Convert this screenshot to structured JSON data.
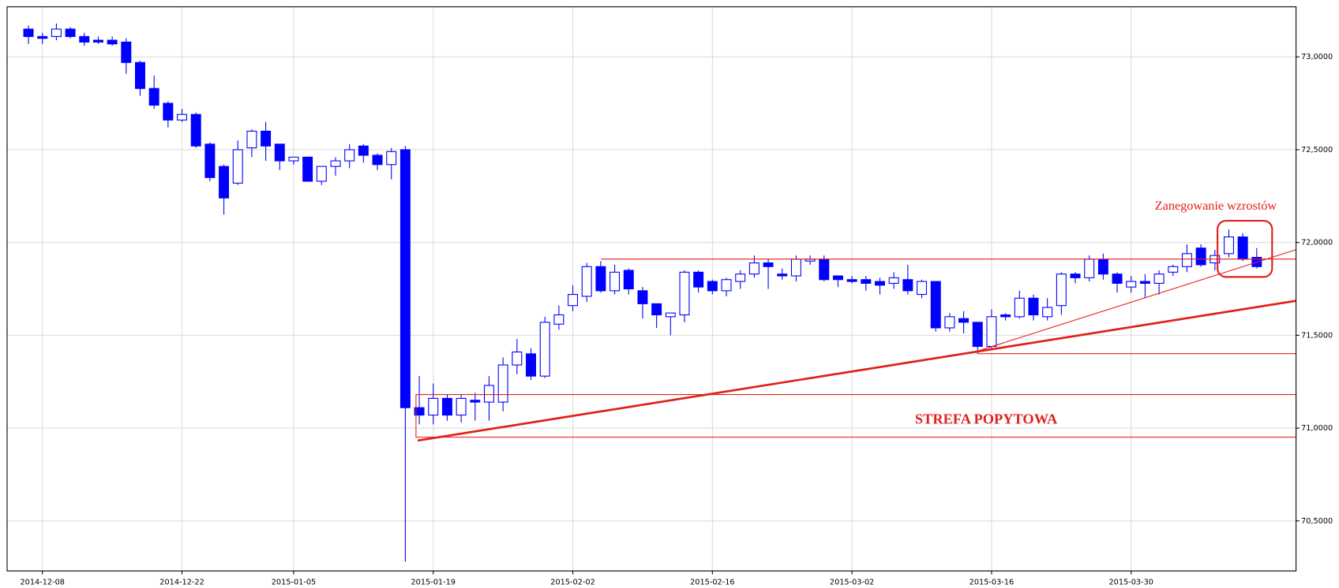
{
  "chart_data": {
    "type": "candlestick",
    "categories": [
      null,
      "2014-12-08",
      null,
      null,
      null,
      null,
      null,
      null,
      null,
      null,
      null,
      "2014-12-22",
      null,
      null,
      null,
      null,
      null,
      null,
      null,
      "2015-01-05",
      null,
      null,
      null,
      null,
      null,
      null,
      null,
      null,
      null,
      "2015-01-19",
      null,
      null,
      null,
      null,
      null,
      null,
      null,
      null,
      null,
      "2015-02-02",
      null,
      null,
      null,
      null,
      null,
      null,
      null,
      null,
      null,
      "2015-02-16",
      null,
      null,
      null,
      null,
      null,
      null,
      null,
      null,
      null,
      "2015-03-02",
      null,
      null,
      null,
      null,
      null,
      null,
      null,
      null,
      null,
      "2015-03-16",
      null,
      null,
      null,
      null,
      null,
      null,
      null,
      null,
      null,
      "2015-03-30",
      null,
      null,
      null,
      null,
      null,
      null,
      null,
      null,
      null
    ],
    "open": [
      73.15,
      73.11,
      73.11,
      73.15,
      73.11,
      73.09,
      73.09,
      73.08,
      72.97,
      72.83,
      72.75,
      72.66,
      72.69,
      72.53,
      72.41,
      72.32,
      72.51,
      72.6,
      72.53,
      72.44,
      72.46,
      72.33,
      72.41,
      72.44,
      72.52,
      72.47,
      72.42,
      72.5,
      71.11,
      71.07,
      71.16,
      71.07,
      71.15,
      71.14,
      71.14,
      71.34,
      71.4,
      71.28,
      71.56,
      71.66,
      71.71,
      71.87,
      71.74,
      71.85,
      71.74,
      71.67,
      71.6,
      71.61,
      71.84,
      71.79,
      71.74,
      71.79,
      71.83,
      71.89,
      71.83,
      71.82,
      71.9,
      71.91,
      71.82,
      71.8,
      71.8,
      71.79,
      71.78,
      71.8,
      71.72,
      71.79,
      71.54,
      71.59,
      71.57,
      71.44,
      71.61,
      71.6,
      71.7,
      71.6,
      71.66,
      71.83,
      71.81,
      71.91,
      71.83,
      71.76,
      71.79,
      71.78,
      71.84,
      71.87,
      71.97,
      71.89,
      71.94,
      72.03,
      71.92
    ],
    "high": [
      73.17,
      73.13,
      73.18,
      73.16,
      73.13,
      73.11,
      73.11,
      73.1,
      72.98,
      72.9,
      72.76,
      72.72,
      72.7,
      72.54,
      72.42,
      72.55,
      72.61,
      72.65,
      72.53,
      72.46,
      72.46,
      72.41,
      72.46,
      72.53,
      72.53,
      72.48,
      72.51,
      72.52,
      71.28,
      71.24,
      71.18,
      71.18,
      71.19,
      71.28,
      71.38,
      71.48,
      71.43,
      71.6,
      71.66,
      71.77,
      71.89,
      71.9,
      71.88,
      71.86,
      71.76,
      71.67,
      71.62,
      71.85,
      71.85,
      71.8,
      71.81,
      71.85,
      71.93,
      71.91,
      71.86,
      71.93,
      71.93,
      71.93,
      71.82,
      71.82,
      71.82,
      71.81,
      71.84,
      71.88,
      71.8,
      71.79,
      71.62,
      71.63,
      71.57,
      71.64,
      71.62,
      71.74,
      71.72,
      71.7,
      71.84,
      71.84,
      71.93,
      71.94,
      71.84,
      71.82,
      71.83,
      71.85,
      71.88,
      71.99,
      71.99,
      71.96,
      72.07,
      72.05,
      71.97
    ],
    "low": [
      73.07,
      73.07,
      73.09,
      73.1,
      73.06,
      73.07,
      73.06,
      72.91,
      72.79,
      72.72,
      72.62,
      72.65,
      72.51,
      72.33,
      72.15,
      72.31,
      72.46,
      72.44,
      72.39,
      72.42,
      72.33,
      72.31,
      72.36,
      72.4,
      72.43,
      72.39,
      72.34,
      70.28,
      71.02,
      71.02,
      71.04,
      71.03,
      71.04,
      71.04,
      71.09,
      71.29,
      71.26,
      71.27,
      71.53,
      71.63,
      71.68,
      71.73,
      71.72,
      71.72,
      71.59,
      71.54,
      71.5,
      71.57,
      71.73,
      71.72,
      71.71,
      71.75,
      71.81,
      71.75,
      71.8,
      71.79,
      71.88,
      71.79,
      71.76,
      71.78,
      71.74,
      71.72,
      71.75,
      71.72,
      71.7,
      71.52,
      71.52,
      71.51,
      71.4,
      71.42,
      71.58,
      71.59,
      71.58,
      71.58,
      71.61,
      71.78,
      71.79,
      71.8,
      71.73,
      71.73,
      71.7,
      71.72,
      71.82,
      71.84,
      71.87,
      71.85,
      71.92,
      71.9,
      71.86
    ],
    "close": [
      73.11,
      73.1,
      73.15,
      73.11,
      73.08,
      73.08,
      73.07,
      72.97,
      72.83,
      72.74,
      72.66,
      72.69,
      72.52,
      72.35,
      72.24,
      72.5,
      72.6,
      72.52,
      72.44,
      72.46,
      72.33,
      72.41,
      72.44,
      72.5,
      72.47,
      72.42,
      72.49,
      71.11,
      71.07,
      71.16,
      71.07,
      71.16,
      71.14,
      71.23,
      71.34,
      71.41,
      71.28,
      71.57,
      71.61,
      71.72,
      71.87,
      71.74,
      71.84,
      71.75,
      71.67,
      71.61,
      71.62,
      71.84,
      71.76,
      71.74,
      71.8,
      71.83,
      71.89,
      71.87,
      71.82,
      71.91,
      71.91,
      71.8,
      71.8,
      71.79,
      71.78,
      71.77,
      71.81,
      71.74,
      71.79,
      71.54,
      71.6,
      71.57,
      71.44,
      71.6,
      71.6,
      71.7,
      71.61,
      71.65,
      71.83,
      71.81,
      71.91,
      71.83,
      71.78,
      71.79,
      71.78,
      71.83,
      71.87,
      71.94,
      71.88,
      71.93,
      72.03,
      71.91,
      71.87
    ],
    "up_color": "#ffffff",
    "down_color": "#0000ff",
    "edge_color": "#0000ff",
    "ylim": [
      70.23,
      73.27
    ],
    "yticks": [
      {
        "value": 70.5,
        "label": "70,5000"
      },
      {
        "value": 71,
        "label": "71,0000"
      },
      {
        "value": 71.5,
        "label": "71,5000"
      },
      {
        "value": 72,
        "label": "72,0000"
      },
      {
        "value": 72.5,
        "label": "72,5000"
      },
      {
        "value": 73,
        "label": "73,0000"
      }
    ],
    "grid": true,
    "annotations": [
      "Zanegowanie wzrostów",
      "STREFA POPYTOWA"
    ]
  }
}
